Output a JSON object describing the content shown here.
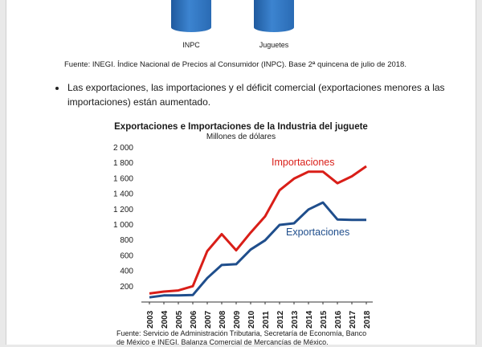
{
  "top_chart": {
    "bars": [
      {
        "label": "INPC",
        "color": "#2a6bb4"
      },
      {
        "label": "Juguetes",
        "color": "#2a6bb4"
      }
    ]
  },
  "source_top": "Fuente: INEGI. Índice Nacional de Precios al Consumidor (INPC). Base 2ª quincena de julio de 2018.",
  "bullet": "Las exportaciones, las importaciones y el déficit comercial (exportaciones menores a las importaciones) están aumentado.",
  "chart_title": "Exportaciones e Importaciones de la Industria del juguete",
  "chart_subtitle": "Millones de dólares",
  "chart_data": {
    "type": "line",
    "x": [
      "2003",
      "2004",
      "2005",
      "2006",
      "2007",
      "2008",
      "2009",
      "2010",
      "2011",
      "2012",
      "2013",
      "2014",
      "2015",
      "2016",
      "2017",
      "2018"
    ],
    "ylim": [
      0,
      2000
    ],
    "yticks": [
      "2 000",
      "1 800",
      "1 600",
      "1 400",
      "1 200",
      "1 000",
      "800",
      "600",
      "400",
      "200"
    ],
    "ytick_values": [
      2000,
      1800,
      1600,
      1400,
      1200,
      1000,
      800,
      600,
      400,
      200
    ],
    "grid": false,
    "series": [
      {
        "name": "Importaciones",
        "color": "#d91e18",
        "values": [
          100,
          125,
          140,
          195,
          650,
          870,
          660,
          890,
          1100,
          1440,
          1590,
          1680,
          1680,
          1530,
          1620,
          1750
        ]
      },
      {
        "name": "Exportaciones",
        "color": "#1f4e8c",
        "values": [
          50,
          75,
          75,
          80,
          300,
          470,
          480,
          670,
          790,
          990,
          1010,
          1190,
          1280,
          1060,
          1055,
          1055
        ]
      }
    ]
  },
  "source_bottom": "Fuente: Servicio de Administración Tributaria, Secretaría de Economía, Banco de México e INEGI. Balanza Comercial de Mercancías de México."
}
